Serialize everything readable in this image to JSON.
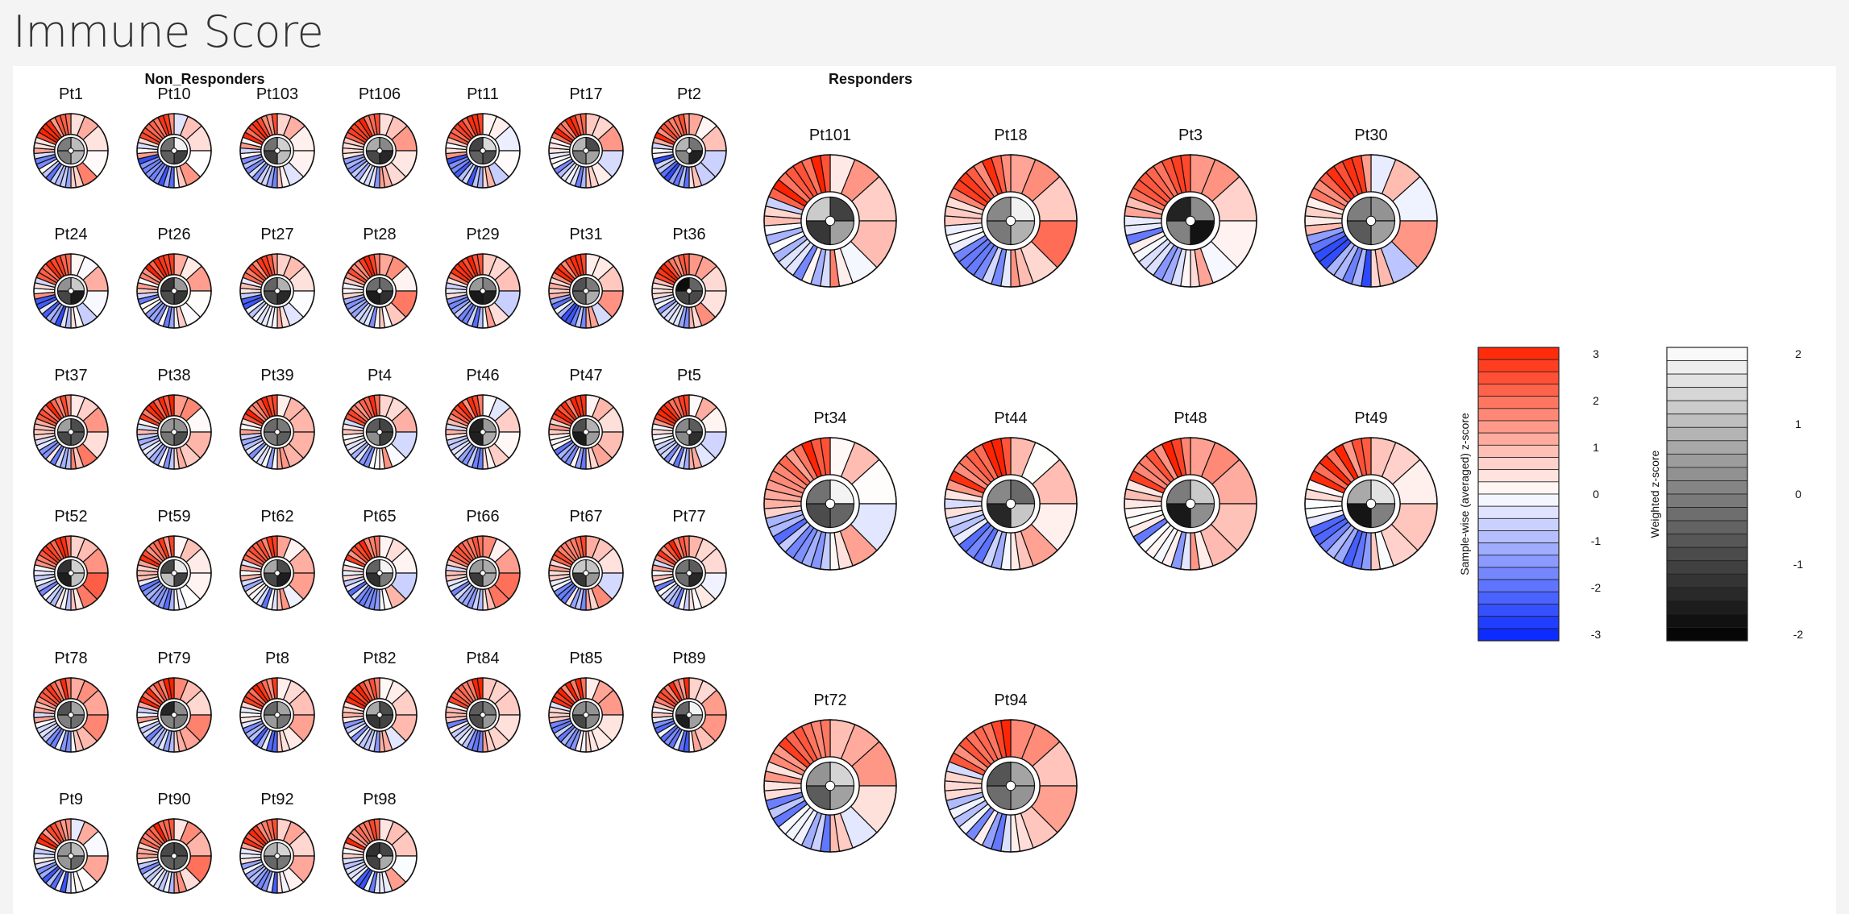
{
  "page": {
    "title": "Immune Score"
  },
  "chart_data": {
    "type": "immune-score-wheels",
    "title": "Immune Score",
    "groups": [
      {
        "name": "Non_Responders",
        "patients": [
          "Pt1",
          "Pt10",
          "Pt103",
          "Pt106",
          "Pt11",
          "Pt17",
          "Pt2",
          "Pt24",
          "Pt26",
          "Pt27",
          "Pt28",
          "Pt29",
          "Pt31",
          "Pt36",
          "Pt37",
          "Pt38",
          "Pt39",
          "Pt4",
          "Pt46",
          "Pt47",
          "Pt5",
          "Pt52",
          "Pt59",
          "Pt62",
          "Pt65",
          "Pt66",
          "Pt67",
          "Pt77",
          "Pt78",
          "Pt79",
          "Pt8",
          "Pt82",
          "Pt84",
          "Pt85",
          "Pt89",
          "Pt9",
          "Pt90",
          "Pt92",
          "Pt98"
        ]
      },
      {
        "name": "Responders",
        "patients": [
          "Pt101",
          "Pt18",
          "Pt3",
          "Pt30",
          "Pt34",
          "Pt44",
          "Pt48",
          "Pt49",
          "Pt72",
          "Pt94"
        ]
      }
    ],
    "wheel_colors": {
      "outer_segment_count": 28,
      "outer_group_count": 7
    },
    "legend_z": {
      "title": "Sample-wise (averaged) z-score",
      "ticks": [
        "3",
        "2",
        "1",
        "0",
        "-1",
        "-2",
        "-3"
      ],
      "range": [
        -3,
        3
      ],
      "low_color": "#0022ff",
      "mid_color": "#ffffff",
      "high_color": "#ff2200"
    },
    "legend_weighted": {
      "title": "Weighted z-score",
      "ticks": [
        "2",
        "1",
        "0",
        "-1",
        "-2"
      ],
      "range": [
        -2,
        2
      ],
      "low_color": "#000000",
      "high_color": "#ffffff"
    }
  }
}
